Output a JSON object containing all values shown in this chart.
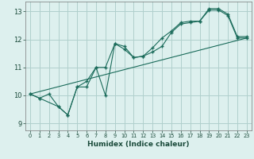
{
  "xlabel": "Humidex (Indice chaleur)",
  "xlim": [
    -0.5,
    23.5
  ],
  "ylim": [
    8.75,
    13.35
  ],
  "yticks": [
    9,
    10,
    11,
    12,
    13
  ],
  "xticks": [
    0,
    1,
    2,
    3,
    4,
    5,
    6,
    7,
    8,
    9,
    10,
    11,
    12,
    13,
    14,
    15,
    16,
    17,
    18,
    19,
    20,
    21,
    22,
    23
  ],
  "bg_color": "#ddf0ee",
  "grid_color": "#b0d0cc",
  "line_color": "#1a6b5a",
  "line1_x": [
    0,
    1,
    2,
    3,
    4,
    5,
    6,
    7,
    8,
    9,
    10,
    11,
    12,
    13,
    14,
    15,
    16,
    17,
    18,
    19,
    20,
    21,
    22,
    23
  ],
  "line1_y": [
    10.05,
    9.9,
    10.05,
    9.6,
    9.3,
    10.3,
    10.3,
    11.0,
    10.0,
    11.85,
    11.75,
    11.35,
    11.4,
    11.55,
    11.75,
    12.25,
    12.55,
    12.6,
    12.65,
    13.05,
    13.05,
    12.85,
    12.05,
    12.05
  ],
  "line2_x": [
    0,
    1,
    3,
    4,
    5,
    6,
    7,
    8,
    9,
    10,
    11,
    12,
    13,
    14,
    15,
    16,
    17,
    18,
    19,
    20,
    21,
    22,
    23
  ],
  "line2_y": [
    10.05,
    9.9,
    9.6,
    9.3,
    10.3,
    10.5,
    11.0,
    11.0,
    11.85,
    11.65,
    11.35,
    11.4,
    11.7,
    12.05,
    12.3,
    12.6,
    12.65,
    12.65,
    13.1,
    13.1,
    12.9,
    12.1,
    12.1
  ],
  "line3_x": [
    0,
    23
  ],
  "line3_y": [
    10.05,
    12.05
  ]
}
